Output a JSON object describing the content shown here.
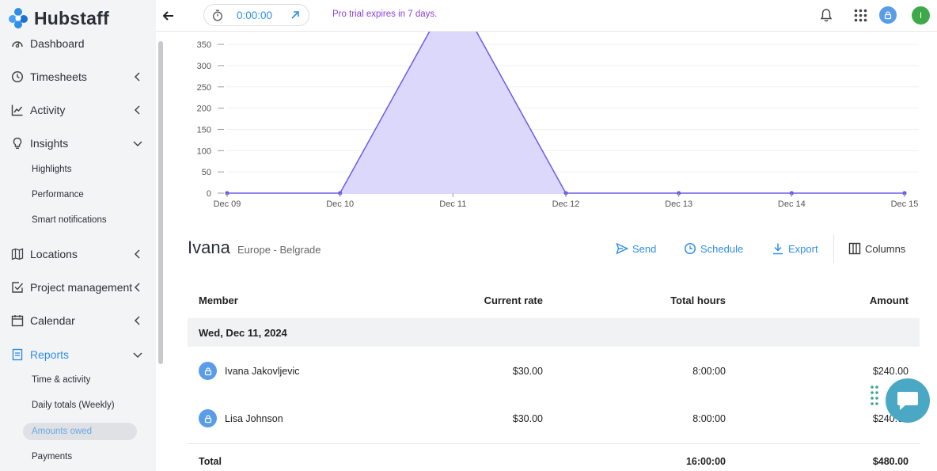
{
  "app": {
    "name": "Hubstaff"
  },
  "sidebar": {
    "items": [
      {
        "label": "Dashboard",
        "icon": "dashboard-icon"
      },
      {
        "label": "Timesheets",
        "icon": "clock-icon"
      },
      {
        "label": "Activity",
        "icon": "activity-icon"
      },
      {
        "label": "Insights",
        "icon": "lightbulb-icon"
      },
      {
        "label": "Locations",
        "icon": "map-icon"
      },
      {
        "label": "Project management",
        "icon": "checkbox-icon"
      },
      {
        "label": "Calendar",
        "icon": "calendar-icon"
      },
      {
        "label": "Reports",
        "icon": "report-icon"
      }
    ],
    "insights_sub": [
      "Highlights",
      "Performance",
      "Smart notifications"
    ],
    "reports_sub": [
      "Time & activity",
      "Daily totals (Weekly)",
      "Amounts owed",
      "Payments"
    ]
  },
  "topbar": {
    "timer": "0:00:00",
    "trial_notice": "Pro trial expires in 7 days.",
    "user_initial": "I"
  },
  "chart_data": {
    "type": "area",
    "x": [
      "Dec 09",
      "Dec 10",
      "Dec 11",
      "Dec 12",
      "Dec 13",
      "Dec 14",
      "Dec 15"
    ],
    "values": [
      0,
      0,
      480,
      0,
      0,
      0,
      0
    ],
    "yticks": [
      0,
      50,
      100,
      150,
      200,
      250,
      300,
      350
    ],
    "ylim": [
      0,
      380
    ],
    "grid": true,
    "color": "#6b5ce7",
    "fill": "#dcd8fb"
  },
  "report": {
    "member": "Ivana",
    "location": "Europe - Belgrade",
    "actions": {
      "send": "Send",
      "schedule": "Schedule",
      "export": "Export",
      "columns": "Columns"
    },
    "headers": {
      "member": "Member",
      "rate": "Current rate",
      "hours": "Total hours",
      "amount": "Amount"
    },
    "date_group": "Wed, Dec 11, 2024",
    "rows": [
      {
        "name": "Ivana Jakovljevic",
        "rate": "$30.00",
        "hours": "8:00:00",
        "amount": "$240.00"
      },
      {
        "name": "Lisa Johnson",
        "rate": "$30.00",
        "hours": "8:00:00",
        "amount": "$240.00"
      }
    ],
    "total": {
      "label": "Total",
      "hours": "16:00:00",
      "amount": "$480.00"
    }
  },
  "colors": {
    "accent": "#2f8ee6",
    "trial": "#8b3fd9",
    "chat": "#4aa8c4"
  }
}
